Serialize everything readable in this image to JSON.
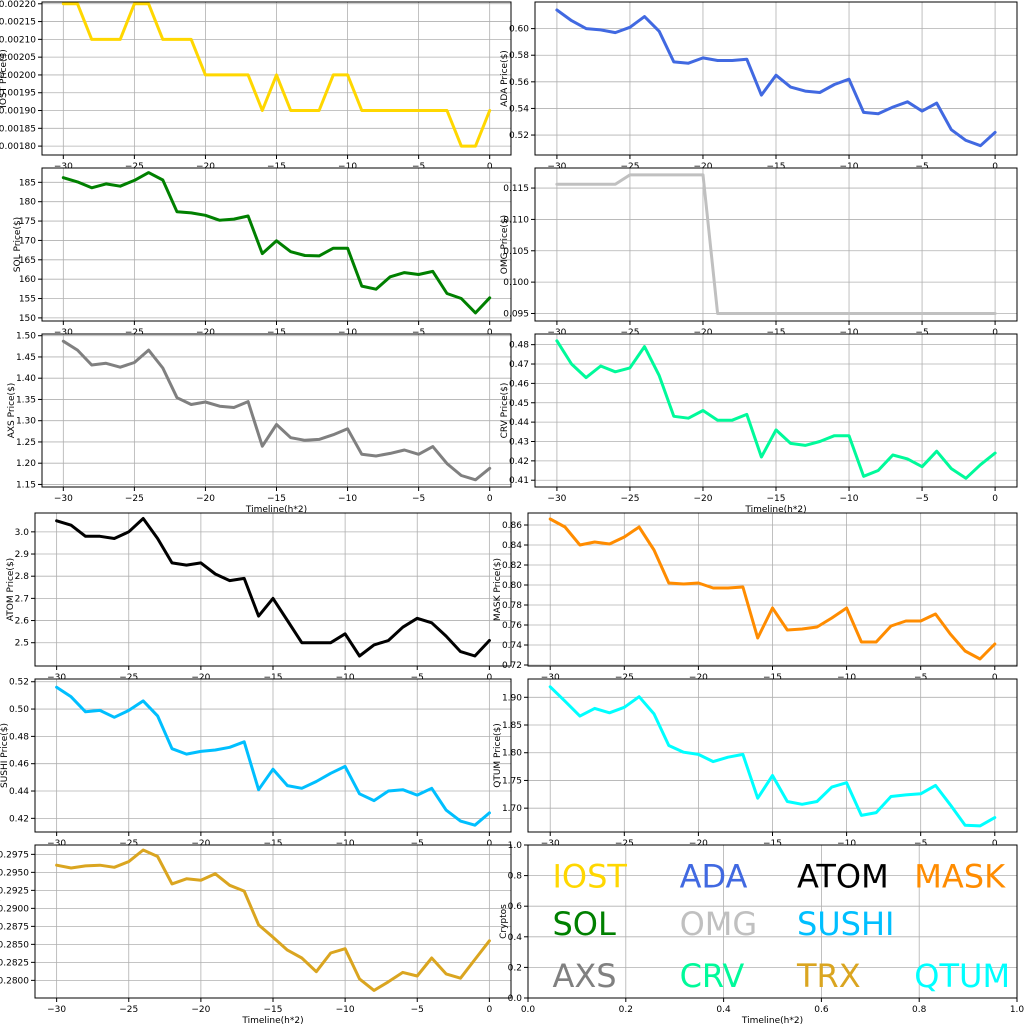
{
  "chart_data": [
    {
      "type": "line",
      "ylabel": "IOST Price($)",
      "xlabel": "",
      "color": "#FFD700",
      "xlim": [
        -31.5,
        1.5
      ],
      "ylim": [
        0.001775,
        0.002205
      ],
      "xticks": [
        -30,
        -25,
        -20,
        -15,
        -10,
        -5,
        0
      ],
      "xtick_labels": [
        "−30",
        "−25",
        "−20",
        "−15",
        "−10",
        "−5",
        "0"
      ],
      "yticks": [
        0.0018,
        0.0019,
        0.002,
        0.0021,
        0.0022
      ],
      "ytick_labels": [
        "0.00180",
        "0.00185",
        "0.00190",
        "0.00195",
        "0.00200",
        "0.00205",
        "0.00210",
        "0.00215",
        "0.00220"
      ],
      "ytick_values": [
        0.0018,
        0.00185,
        0.0019,
        0.00195,
        0.002,
        0.00205,
        0.0021,
        0.00215,
        0.0022
      ],
      "x": [
        -30,
        -29,
        -28,
        -27,
        -26,
        -25,
        -24,
        -23,
        -22,
        -21,
        -20,
        -19,
        -18,
        -17,
        -16,
        -15,
        -14,
        -13,
        -12,
        -11,
        -10,
        -9,
        -8,
        -7,
        -6,
        -5,
        -4,
        -3,
        -2,
        -1,
        0
      ],
      "y": [
        0.0022,
        0.0022,
        0.0021,
        0.0021,
        0.0021,
        0.0022,
        0.0022,
        0.0021,
        0.0021,
        0.0021,
        0.002,
        0.002,
        0.002,
        0.002,
        0.0019,
        0.002,
        0.0019,
        0.0019,
        0.0019,
        0.002,
        0.002,
        0.0019,
        0.0019,
        0.0019,
        0.0019,
        0.0019,
        0.0019,
        0.0019,
        0.0018,
        0.0018,
        0.0019
      ]
    },
    {
      "type": "line",
      "ylabel": "ADA  Price($)",
      "xlabel": "",
      "color": "#4169E1",
      "xlim": [
        -31.5,
        1.5
      ],
      "ylim": [
        0.505,
        0.62
      ],
      "xticks": [
        -30,
        -25,
        -20,
        -15,
        -10,
        -5,
        0
      ],
      "xtick_labels": [
        "−30",
        "−25",
        "−20",
        "−15",
        "−10",
        "−5",
        "0"
      ],
      "ytick_values": [
        0.52,
        0.54,
        0.56,
        0.58,
        0.6
      ],
      "ytick_labels": [
        "0.52",
        "0.54",
        "0.56",
        "0.58",
        "0.60"
      ],
      "x": [
        -30,
        -29,
        -28,
        -27,
        -26,
        -25,
        -24,
        -23,
        -22,
        -21,
        -20,
        -19,
        -18,
        -17,
        -16,
        -15,
        -14,
        -13,
        -12,
        -11,
        -10,
        -9,
        -8,
        -7,
        -6,
        -5,
        -4,
        -3,
        -2,
        -1,
        0
      ],
      "y": [
        0.614,
        0.606,
        0.6,
        0.599,
        0.597,
        0.601,
        0.609,
        0.598,
        0.575,
        0.574,
        0.578,
        0.576,
        0.576,
        0.577,
        0.55,
        0.565,
        0.556,
        0.553,
        0.552,
        0.558,
        0.562,
        0.537,
        0.536,
        0.541,
        0.545,
        0.538,
        0.544,
        0.524,
        0.516,
        0.512,
        0.522
      ]
    },
    {
      "type": "line",
      "ylabel": "SOL Price($)",
      "xlabel": "",
      "color": "#008000",
      "xlim": [
        -31.5,
        1.5
      ],
      "ylim": [
        149.2,
        188.7
      ],
      "xticks": [
        -30,
        -25,
        -20,
        -15,
        -10,
        -5,
        0
      ],
      "xtick_labels": [
        "−30",
        "−25",
        "−20",
        "−15",
        "−10",
        "−5",
        "0"
      ],
      "ytick_values": [
        150,
        155,
        160,
        165,
        170,
        175,
        180,
        185
      ],
      "ytick_labels": [
        "150",
        "155",
        "160",
        "165",
        "170",
        "175",
        "180",
        "185"
      ],
      "x": [
        -30,
        -29,
        -28,
        -27,
        -26,
        -25,
        -24,
        -23,
        -22,
        -21,
        -20,
        -19,
        -18,
        -17,
        -16,
        -15,
        -14,
        -13,
        -12,
        -11,
        -10,
        -9,
        -8,
        -7,
        -6,
        -5,
        -4,
        -3,
        -2,
        -1,
        0
      ],
      "y": [
        186.2,
        185.1,
        183.6,
        184.6,
        184.0,
        185.5,
        187.5,
        185.6,
        177.4,
        177.1,
        176.5,
        175.2,
        175.5,
        176.3,
        166.6,
        169.9,
        167.1,
        166.1,
        166.0,
        168.0,
        168.0,
        158.2,
        157.4,
        160.6,
        161.7,
        161.2,
        162.0,
        156.3,
        155.0,
        151.3,
        155.2
      ]
    },
    {
      "type": "line",
      "ylabel": "OMG  Price($)",
      "xlabel": "",
      "color": "#C0C0C0",
      "xlim": [
        -31.5,
        1.5
      ],
      "ylim": [
        0.0938,
        0.1182
      ],
      "xticks": [
        -30,
        -25,
        -20,
        -15,
        -10,
        -5,
        0
      ],
      "xtick_labels": [
        "−30",
        "−25",
        "−20",
        "−15",
        "−10",
        "−5",
        "0"
      ],
      "ytick_values": [
        0.095,
        0.1,
        0.105,
        0.11,
        0.115
      ],
      "ytick_labels": [
        "0.095",
        "0.100",
        "0.105",
        "0.110",
        "0.115"
      ],
      "x": [
        -30,
        -29,
        -28,
        -27,
        -26,
        -25,
        -24,
        -23,
        -22,
        -21,
        -20,
        -19,
        -18,
        -17,
        -16,
        -15,
        -14,
        -13,
        -12,
        -11,
        -10,
        -9,
        -8,
        -7,
        -6,
        -5,
        -4,
        -3,
        -2,
        -1,
        0
      ],
      "y": [
        0.1156,
        0.1156,
        0.1156,
        0.1156,
        0.1156,
        0.1171,
        0.1171,
        0.1171,
        0.1171,
        0.1171,
        0.1171,
        0.095,
        0.095,
        0.095,
        0.095,
        0.095,
        0.095,
        0.095,
        0.095,
        0.095,
        0.095,
        0.095,
        0.095,
        0.095,
        0.095,
        0.095,
        0.095,
        0.095,
        0.095,
        0.095,
        0.095
      ]
    },
    {
      "type": "line",
      "ylabel": "AXS Price($)",
      "xlabel": "Timeline(h*2)",
      "color": "#808080",
      "xlim": [
        -31.5,
        1.5
      ],
      "ylim": [
        1.144,
        1.504
      ],
      "xticks": [
        -30,
        -25,
        -20,
        -15,
        -10,
        -5,
        0
      ],
      "xtick_labels": [
        "−30",
        "−25",
        "−20",
        "−15",
        "−10",
        "−5",
        "0"
      ],
      "ytick_values": [
        1.15,
        1.2,
        1.25,
        1.3,
        1.35,
        1.4,
        1.45,
        1.5
      ],
      "ytick_labels": [
        "1.15",
        "1.20",
        "1.25",
        "1.30",
        "1.35",
        "1.40",
        "1.45",
        "1.50"
      ],
      "x": [
        -30,
        -29,
        -28,
        -27,
        -26,
        -25,
        -24,
        -23,
        -22,
        -21,
        -20,
        -19,
        -18,
        -17,
        -16,
        -15,
        -14,
        -13,
        -12,
        -11,
        -10,
        -9,
        -8,
        -7,
        -6,
        -5,
        -4,
        -3,
        -2,
        -1,
        0
      ],
      "y": [
        1.487,
        1.466,
        1.431,
        1.435,
        1.426,
        1.437,
        1.466,
        1.424,
        1.354,
        1.338,
        1.344,
        1.334,
        1.331,
        1.345,
        1.24,
        1.291,
        1.26,
        1.254,
        1.256,
        1.267,
        1.281,
        1.221,
        1.217,
        1.223,
        1.231,
        1.221,
        1.239,
        1.199,
        1.171,
        1.161,
        1.188
      ]
    },
    {
      "type": "line",
      "ylabel": "CRV  Price($)",
      "xlabel": "Timeline(h*2)",
      "color": "#00FA9A",
      "xlim": [
        -31.5,
        1.5
      ],
      "ylim": [
        0.4065,
        0.4855
      ],
      "xticks": [
        -30,
        -25,
        -20,
        -15,
        -10,
        -5,
        0
      ],
      "xtick_labels": [
        "−30",
        "−25",
        "−20",
        "−15",
        "−10",
        "−5",
        "0"
      ],
      "ytick_values": [
        0.41,
        0.42,
        0.43,
        0.44,
        0.45,
        0.46,
        0.47,
        0.48
      ],
      "ytick_labels": [
        "0.41",
        "0.42",
        "0.43",
        "0.44",
        "0.45",
        "0.46",
        "0.47",
        "0.48"
      ],
      "x": [
        -30,
        -29,
        -28,
        -27,
        -26,
        -25,
        -24,
        -23,
        -22,
        -21,
        -20,
        -19,
        -18,
        -17,
        -16,
        -15,
        -14,
        -13,
        -12,
        -11,
        -10,
        -9,
        -8,
        -7,
        -6,
        -5,
        -4,
        -3,
        -2,
        -1,
        0
      ],
      "y": [
        0.482,
        0.47,
        0.463,
        0.469,
        0.466,
        0.468,
        0.479,
        0.464,
        0.443,
        0.442,
        0.446,
        0.441,
        0.441,
        0.444,
        0.422,
        0.436,
        0.429,
        0.428,
        0.43,
        0.433,
        0.433,
        0.412,
        0.415,
        0.423,
        0.421,
        0.417,
        0.425,
        0.416,
        0.411,
        0.418,
        0.424
      ]
    },
    {
      "type": "line",
      "ylabel": "ATOM  Price($)",
      "xlabel": "",
      "color": "#000000",
      "xlim": [
        -31.5,
        1.5
      ],
      "ylim": [
        2.395,
        3.085
      ],
      "xticks": [
        -30,
        -25,
        -20,
        -15,
        -10,
        -5,
        0
      ],
      "xtick_labels": [
        "−30",
        "−25",
        "−20",
        "−15",
        "−10",
        "−5",
        "0"
      ],
      "ytick_values": [
        2.5,
        2.6,
        2.7,
        2.8,
        2.9,
        3.0
      ],
      "ytick_labels": [
        "2.5",
        "2.6",
        "2.7",
        "2.8",
        "2.9",
        "3.0"
      ],
      "x": [
        -30,
        -29,
        -28,
        -27,
        -26,
        -25,
        -24,
        -23,
        -22,
        -21,
        -20,
        -19,
        -18,
        -17,
        -16,
        -15,
        -14,
        -13,
        -12,
        -11,
        -10,
        -9,
        -8,
        -7,
        -6,
        -5,
        -4,
        -3,
        -2,
        -1,
        0
      ],
      "y": [
        3.05,
        3.03,
        2.98,
        2.98,
        2.97,
        3.0,
        3.06,
        2.97,
        2.86,
        2.85,
        2.86,
        2.81,
        2.78,
        2.79,
        2.62,
        2.7,
        2.6,
        2.5,
        2.5,
        2.5,
        2.54,
        2.44,
        2.49,
        2.51,
        2.57,
        2.61,
        2.59,
        2.53,
        2.46,
        2.44,
        2.51
      ]
    },
    {
      "type": "line",
      "ylabel": "MASK  Price($)",
      "xlabel": "",
      "color": "#FF8C00",
      "xlim": [
        -31.5,
        1.5
      ],
      "ylim": [
        0.719,
        0.872
      ],
      "xticks": [
        -30,
        -25,
        -20,
        -15,
        -10,
        -5,
        0
      ],
      "xtick_labels": [
        "−30",
        "−25",
        "−20",
        "−15",
        "−10",
        "−5",
        "0"
      ],
      "ytick_values": [
        0.72,
        0.74,
        0.76,
        0.78,
        0.8,
        0.82,
        0.84,
        0.86
      ],
      "ytick_labels": [
        "0.72",
        "0.74",
        "0.76",
        "0.78",
        "0.80",
        "0.82",
        "0.84",
        "0.86"
      ],
      "x": [
        -30,
        -29,
        -28,
        -27,
        -26,
        -25,
        -24,
        -23,
        -22,
        -21,
        -20,
        -19,
        -18,
        -17,
        -16,
        -15,
        -14,
        -13,
        -12,
        -11,
        -10,
        -9,
        -8,
        -7,
        -6,
        -5,
        -4,
        -3,
        -2,
        -1,
        0
      ],
      "y": [
        0.866,
        0.858,
        0.84,
        0.843,
        0.841,
        0.848,
        0.858,
        0.835,
        0.802,
        0.801,
        0.802,
        0.797,
        0.797,
        0.798,
        0.747,
        0.777,
        0.755,
        0.756,
        0.758,
        0.767,
        0.777,
        0.743,
        0.743,
        0.759,
        0.764,
        0.764,
        0.771,
        0.751,
        0.734,
        0.726,
        0.741
      ]
    },
    {
      "type": "line",
      "ylabel": "SUSHI  Price($)",
      "xlabel": "",
      "color": "#00BFFF",
      "xlim": [
        -31.5,
        1.5
      ],
      "ylim": [
        0.41,
        0.522
      ],
      "xticks": [
        -30,
        -25,
        -20,
        -15,
        -10,
        -5,
        0
      ],
      "xtick_labels": [
        "−30",
        "−25",
        "−20",
        "−15",
        "−10",
        "−5",
        "0"
      ],
      "ytick_values": [
        0.42,
        0.44,
        0.46,
        0.48,
        0.5,
        0.52
      ],
      "ytick_labels": [
        "0.42",
        "0.44",
        "0.46",
        "0.48",
        "0.50",
        "0.52"
      ],
      "x": [
        -30,
        -29,
        -28,
        -27,
        -26,
        -25,
        -24,
        -23,
        -22,
        -21,
        -20,
        -19,
        -18,
        -17,
        -16,
        -15,
        -14,
        -13,
        -12,
        -11,
        -10,
        -9,
        -8,
        -7,
        -6,
        -5,
        -4,
        -3,
        -2,
        -1,
        0
      ],
      "y": [
        0.516,
        0.509,
        0.498,
        0.499,
        0.494,
        0.499,
        0.506,
        0.495,
        0.471,
        0.467,
        0.469,
        0.47,
        0.472,
        0.476,
        0.441,
        0.456,
        0.444,
        0.442,
        0.447,
        0.453,
        0.458,
        0.438,
        0.433,
        0.44,
        0.441,
        0.437,
        0.442,
        0.426,
        0.418,
        0.415,
        0.424
      ]
    },
    {
      "type": "line",
      "ylabel": "QTUM Price($)",
      "xlabel": "",
      "color": "#00FFFF",
      "xlim": [
        -31.5,
        1.5
      ],
      "ylim": [
        1.657,
        1.933
      ],
      "xticks": [
        -30,
        -25,
        -20,
        -15,
        -10,
        -5,
        0
      ],
      "xtick_labels": [
        "−30",
        "−25",
        "−20",
        "−15",
        "−10",
        "−5",
        "0"
      ],
      "ytick_values": [
        1.7,
        1.75,
        1.8,
        1.85,
        1.9
      ],
      "ytick_labels": [
        "1.70",
        "1.75",
        "1.80",
        "1.85",
        "1.90"
      ],
      "x": [
        -30,
        -29,
        -28,
        -27,
        -26,
        -25,
        -24,
        -23,
        -22,
        -21,
        -20,
        -19,
        -18,
        -17,
        -16,
        -15,
        -14,
        -13,
        -12,
        -11,
        -10,
        -9,
        -8,
        -7,
        -6,
        -5,
        -4,
        -3,
        -2,
        -1,
        0
      ],
      "y": [
        1.919,
        1.893,
        1.866,
        1.88,
        1.872,
        1.882,
        1.901,
        1.87,
        1.813,
        1.801,
        1.797,
        1.784,
        1.792,
        1.797,
        1.718,
        1.759,
        1.712,
        1.707,
        1.712,
        1.738,
        1.746,
        1.687,
        1.692,
        1.721,
        1.724,
        1.726,
        1.741,
        1.706,
        1.669,
        1.668,
        1.683
      ]
    },
    {
      "type": "line",
      "ylabel": "TRX Price($)",
      "xlabel": "Timeline(h*2)",
      "color": "#DAA520",
      "xlim": [
        -31.5,
        1.5
      ],
      "ylim": [
        0.27755,
        0.2988
      ],
      "xticks": [
        -30,
        -25,
        -20,
        -15,
        -10,
        -5,
        0
      ],
      "xtick_labels": [
        "−30",
        "−25",
        "−20",
        "−15",
        "−10",
        "−5",
        "0"
      ],
      "ytick_values": [
        0.28,
        0.2825,
        0.285,
        0.2875,
        0.29,
        0.2925,
        0.295,
        0.2975
      ],
      "ytick_labels": [
        "0.2800",
        "0.2825",
        "0.2850",
        "0.2875",
        "0.2900",
        "0.2925",
        "0.2950",
        "0.2975"
      ],
      "x": [
        -30,
        -29,
        -28,
        -27,
        -26,
        -25,
        -24,
        -23,
        -22,
        -21,
        -20,
        -19,
        -18,
        -17,
        -16,
        -15,
        -14,
        -13,
        -12,
        -11,
        -10,
        -9,
        -8,
        -7,
        -6,
        -5,
        -4,
        -3,
        -2,
        -1,
        0
      ],
      "y": [
        0.296,
        0.2956,
        0.2959,
        0.296,
        0.2957,
        0.2965,
        0.2981,
        0.2972,
        0.2934,
        0.2941,
        0.2939,
        0.2948,
        0.2932,
        0.2924,
        0.2877,
        0.286,
        0.2842,
        0.2831,
        0.2812,
        0.2838,
        0.2844,
        0.2802,
        0.2786,
        0.2798,
        0.2811,
        0.2806,
        0.2831,
        0.2809,
        0.2803,
        0.2829,
        0.2855
      ]
    },
    {
      "type": "table",
      "ylabel": "Cryptos",
      "xlabel": "Timeline(h*2)",
      "xlim": [
        0.0,
        1.0
      ],
      "ylim": [
        0.0,
        1.0
      ],
      "xtick_values": [
        0.0,
        0.2,
        0.4,
        0.6,
        0.8,
        1.0
      ],
      "xtick_labels": [
        "0.0",
        "0.2",
        "0.4",
        "0.6",
        "0.8",
        "1.0"
      ],
      "ytick_values": [
        0.0,
        0.2,
        0.4,
        0.6,
        0.8,
        1.0
      ],
      "ytick_labels": [
        "0.0",
        "0.2",
        "0.4",
        "0.6",
        "0.8",
        "1.0"
      ],
      "entries": [
        {
          "name": "IOST",
          "color": "#FFD700"
        },
        {
          "name": "ADA",
          "color": "#4169E1"
        },
        {
          "name": "ATOM",
          "color": "#000000"
        },
        {
          "name": "MASK",
          "color": "#FF8C00"
        },
        {
          "name": "SOL",
          "color": "#008000"
        },
        {
          "name": "OMG",
          "color": "#C0C0C0"
        },
        {
          "name": "SUSHI",
          "color": "#00BFFF"
        },
        {
          "name": "AXS",
          "color": "#808080"
        },
        {
          "name": "CRV",
          "color": "#00FA9A"
        },
        {
          "name": "TRX",
          "color": "#DAA520"
        },
        {
          "name": "QTUM",
          "color": "#00FFFF"
        }
      ]
    }
  ]
}
